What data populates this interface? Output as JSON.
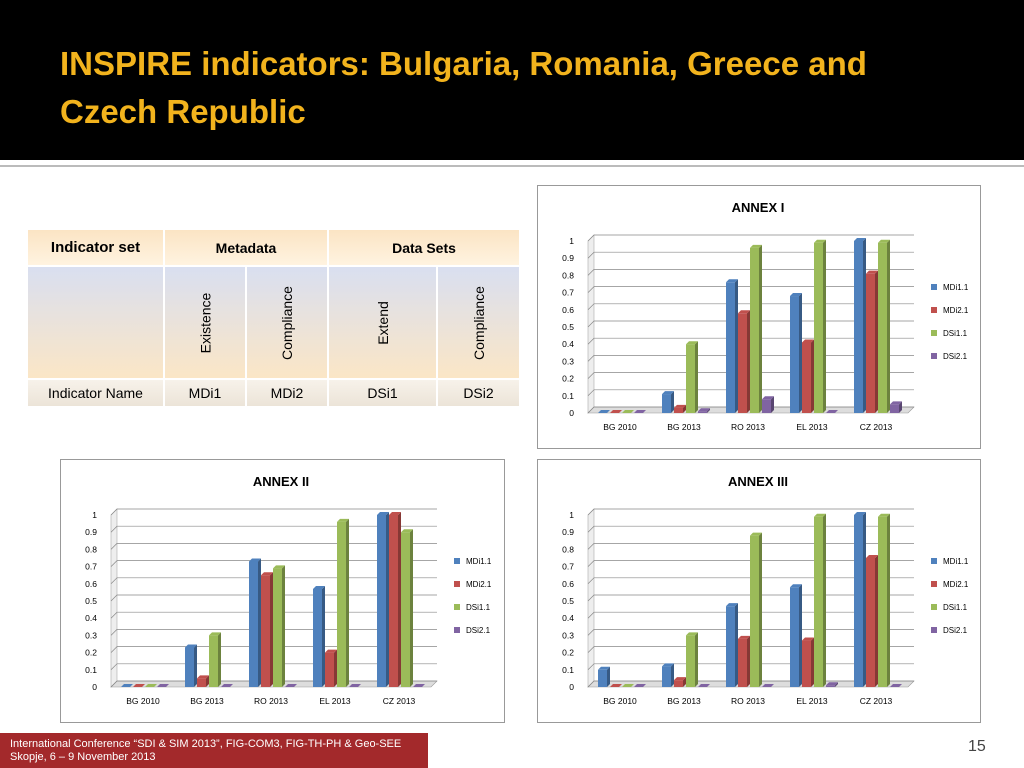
{
  "header": {
    "title": "INSPIRE indicators: Bulgaria, Romania, Greece and Czech Republic"
  },
  "table": {
    "header": [
      "Indicator set",
      "Metadata",
      "Data Sets"
    ],
    "subheader": [
      "Existence",
      "Compliance",
      "Extend",
      "Compliance"
    ],
    "rows": [
      [
        "Indicator Name",
        "MDi1",
        "MDi2",
        "DSi1",
        "DSi2"
      ]
    ]
  },
  "chart_data": [
    {
      "type": "bar",
      "title": "ANNEX I",
      "categories": [
        "BG 2010",
        "BG 2013",
        "RO 2013",
        "EL 2013",
        "CZ 2013"
      ],
      "series": [
        {
          "name": "MDi1.1",
          "color": "#4f81bd",
          "values": [
            0,
            0.11,
            0.76,
            0.68,
            1.0
          ]
        },
        {
          "name": "MDi2.1",
          "color": "#c0504d",
          "values": [
            0,
            0.03,
            0.58,
            0.41,
            0.81
          ]
        },
        {
          "name": "DSi1.1",
          "color": "#9bbb59",
          "values": [
            0,
            0.4,
            0.96,
            0.99,
            0.99
          ]
        },
        {
          "name": "DSi2.1",
          "color": "#8064a2",
          "values": [
            0,
            0.01,
            0.08,
            0,
            0.05
          ]
        }
      ],
      "ylim": [
        0,
        1
      ],
      "yticks": [
        0,
        0.1,
        0.2,
        0.3,
        0.4,
        0.5,
        0.6,
        0.7,
        0.8,
        0.9,
        1
      ],
      "grid": true,
      "legend": "right"
    },
    {
      "type": "bar",
      "title": "ANNEX II",
      "categories": [
        "BG 2010",
        "BG 2013",
        "RO 2013",
        "EL 2013",
        "CZ 2013"
      ],
      "series": [
        {
          "name": "MDi1.1",
          "color": "#4f81bd",
          "values": [
            0,
            0.23,
            0.73,
            0.57,
            1.0
          ]
        },
        {
          "name": "MDi2.1",
          "color": "#c0504d",
          "values": [
            0,
            0.05,
            0.65,
            0.2,
            1.0
          ]
        },
        {
          "name": "DSi1.1",
          "color": "#9bbb59",
          "values": [
            0,
            0.3,
            0.69,
            0.96,
            0.9
          ]
        },
        {
          "name": "DSi2.1",
          "color": "#8064a2",
          "values": [
            0,
            0,
            0,
            0,
            0
          ]
        }
      ],
      "ylim": [
        0,
        1
      ],
      "yticks": [
        0,
        0.1,
        0.2,
        0.3,
        0.4,
        0.5,
        0.6,
        0.7,
        0.8,
        0.9,
        1
      ],
      "grid": true,
      "legend": "right"
    },
    {
      "type": "bar",
      "title": "ANNEX III",
      "categories": [
        "BG 2010",
        "BG 2013",
        "RO 2013",
        "EL 2013",
        "CZ 2013"
      ],
      "series": [
        {
          "name": "MDi1.1",
          "color": "#4f81bd",
          "values": [
            0.1,
            0.12,
            0.47,
            0.58,
            1.0
          ]
        },
        {
          "name": "MDi2.1",
          "color": "#c0504d",
          "values": [
            0,
            0.04,
            0.28,
            0.27,
            0.75
          ]
        },
        {
          "name": "DSi1.1",
          "color": "#9bbb59",
          "values": [
            0,
            0.3,
            0.88,
            0.99,
            0.99
          ]
        },
        {
          "name": "DSi2.1",
          "color": "#8064a2",
          "values": [
            0,
            0,
            0,
            0.01,
            0
          ]
        }
      ],
      "ylim": [
        0,
        1
      ],
      "yticks": [
        0,
        0.1,
        0.2,
        0.3,
        0.4,
        0.5,
        0.6,
        0.7,
        0.8,
        0.9,
        1
      ],
      "grid": true,
      "legend": "right"
    }
  ],
  "footer": {
    "lines": [
      "International Conference “SDI & SIM 2013”, FIG-COM3, FIG-TH-PH & Geo-SEE",
      "Skopje, 6 – 9 November 2013"
    ],
    "page": "15"
  }
}
